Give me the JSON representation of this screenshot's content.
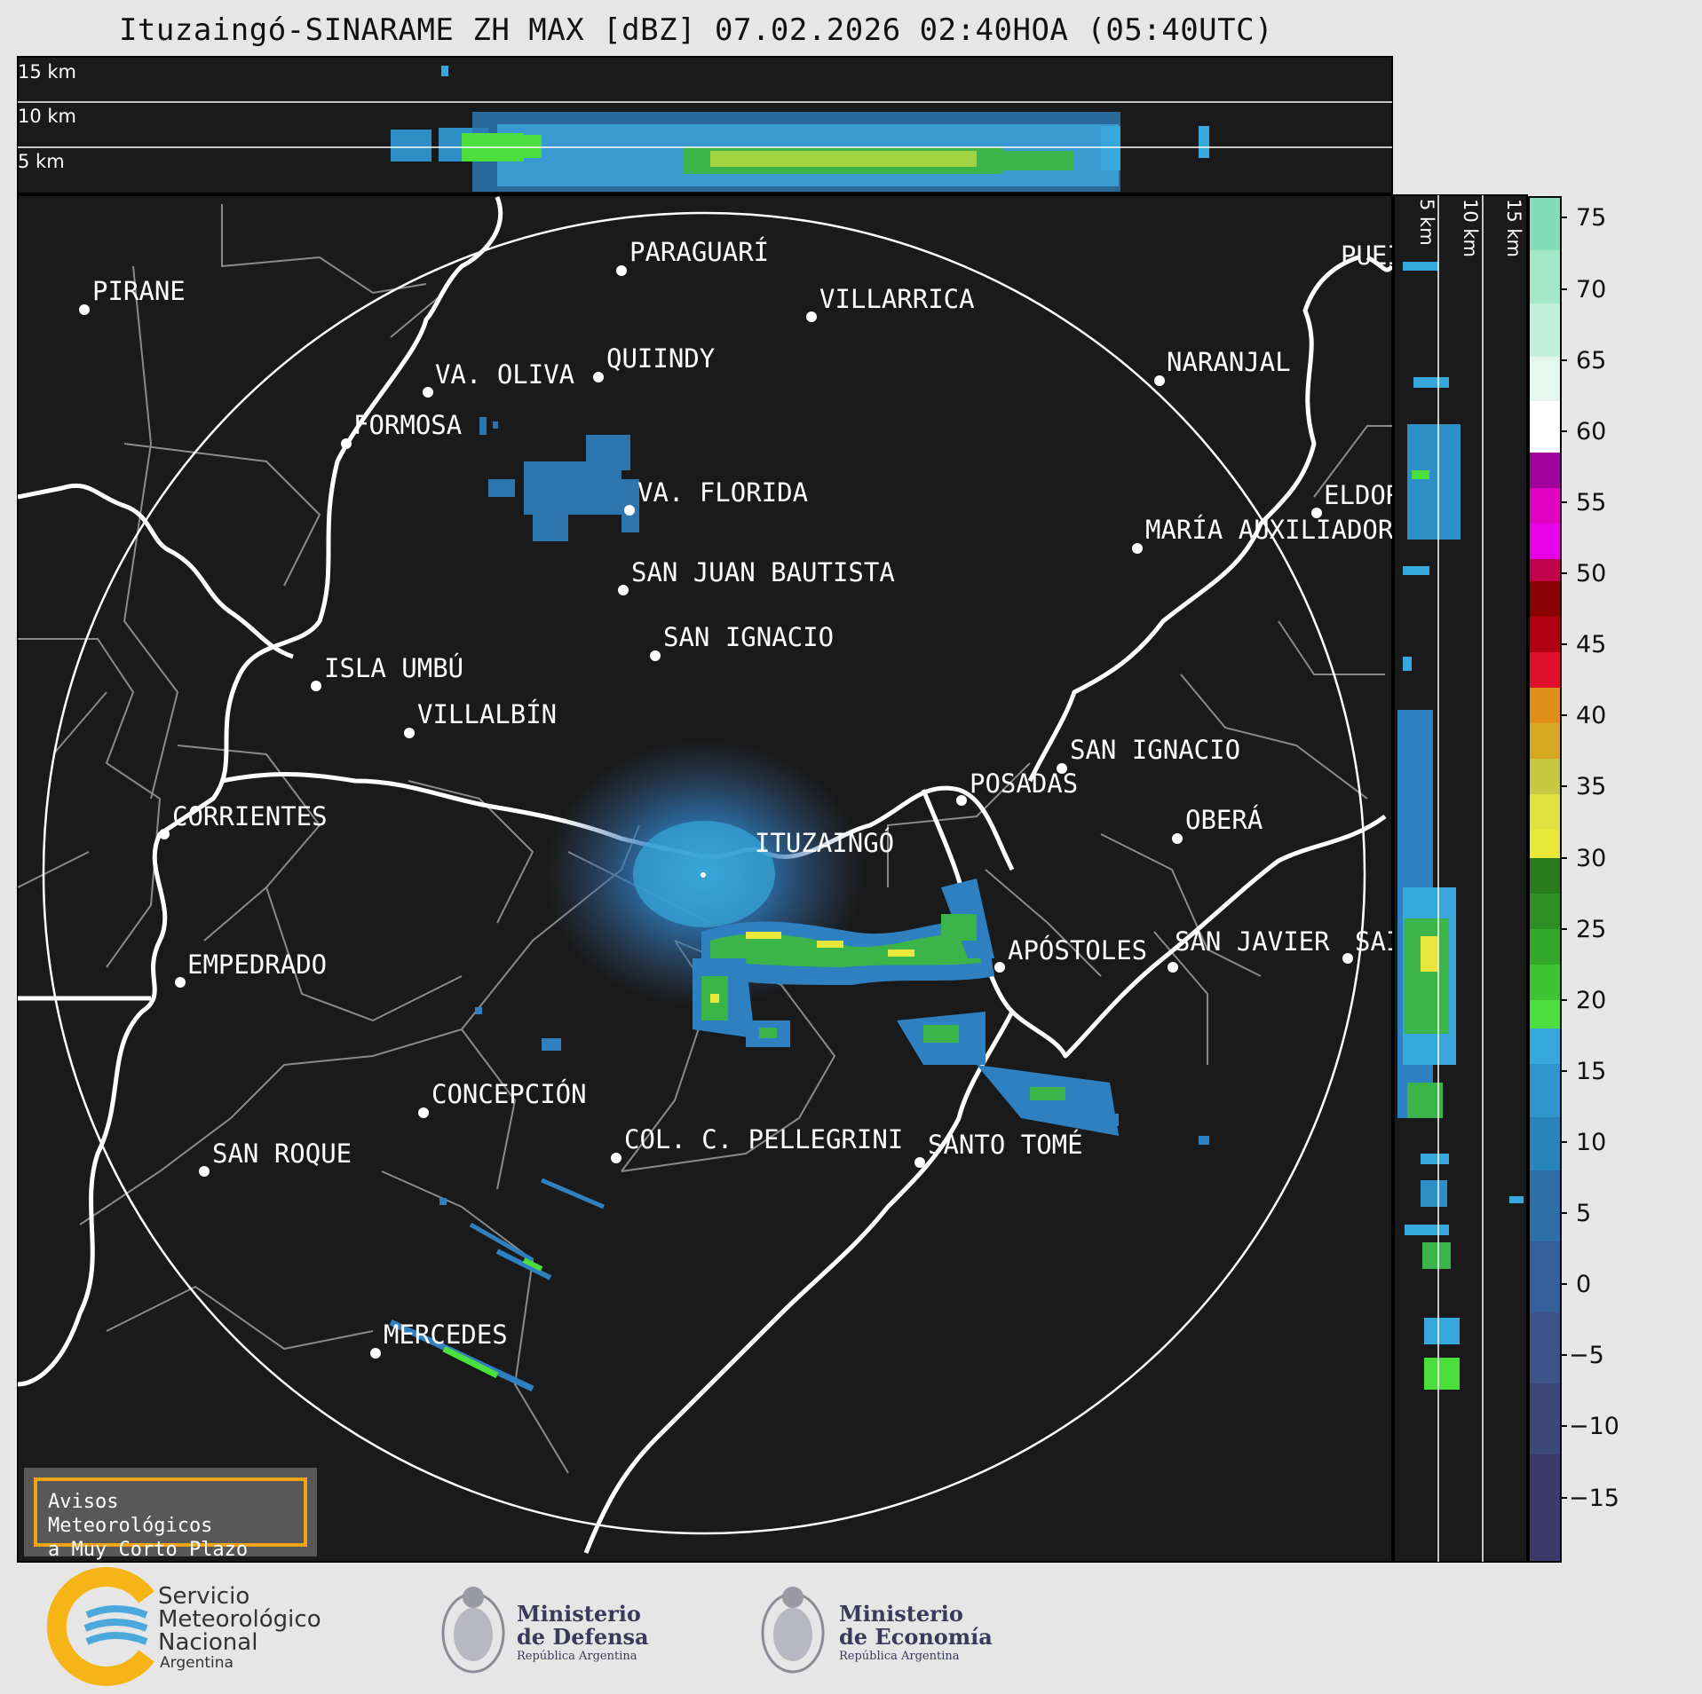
{
  "title": "Ituzaingó-SINARAME ZH MAX [dBZ] 07.02.2026 02:40HOA (05:40UTC)",
  "top_panel": {
    "height_labels": [
      "15 km",
      "10 km",
      "5 km"
    ]
  },
  "side_panel": {
    "height_labels": [
      "5 km",
      "10 km",
      "15 km"
    ]
  },
  "map": {
    "radar_site": "ITUZAINGÓ",
    "cities": [
      {
        "name": "PIRANE"
      },
      {
        "name": "PARAGUARÍ"
      },
      {
        "name": "VILLARRICA"
      },
      {
        "name": "VA. OLIVA"
      },
      {
        "name": "QUIINDY"
      },
      {
        "name": "NARANJAL"
      },
      {
        "name": "FORMOSA"
      },
      {
        "name": "VA. FLORIDA"
      },
      {
        "name": "ELDOR"
      },
      {
        "name": "MARÍA AUXILIADOR"
      },
      {
        "name": "SAN JUAN BAUTISTA"
      },
      {
        "name": "SAN IGNACIO"
      },
      {
        "name": "ISLA UMBÚ"
      },
      {
        "name": "VILLALBÍN"
      },
      {
        "name": "SAN IGNACIO"
      },
      {
        "name": "POSADAS"
      },
      {
        "name": "CORRIENTES"
      },
      {
        "name": "OBERÁ"
      },
      {
        "name": "APÓSTOLES"
      },
      {
        "name": "SAN JAVIER"
      },
      {
        "name": "SAI"
      },
      {
        "name": "EMPEDRADO"
      },
      {
        "name": "CONCEPCIÓN"
      },
      {
        "name": "COL. C. PELLEGRINI"
      },
      {
        "name": "SANTO TOMÉ"
      },
      {
        "name": "SAN ROQUE"
      },
      {
        "name": "MERCEDES"
      },
      {
        "name": "PUEI"
      }
    ]
  },
  "colorbar": {
    "units": "dBZ",
    "ticks": [
      "75",
      "70",
      "65",
      "60",
      "55",
      "50",
      "45",
      "40",
      "35",
      "30",
      "25",
      "20",
      "15",
      "10",
      "5",
      "0",
      "−5",
      "−10",
      "−15"
    ],
    "colors": {
      "high_teal": "#7fd6b0",
      "white": "#ffffff",
      "purple": "#a0009c",
      "magenta": "#e800e8",
      "dark_red": "#8b0000",
      "red": "#e0102a",
      "orange": "#e0901a",
      "yellow": "#e8e83a",
      "green_dark": "#2a7a1e",
      "green_light": "#4cde3c",
      "blue_light": "#36a8dc",
      "blue": "#2a7fb8",
      "blue_gray": "#3d5a8a",
      "indigo": "#3c3a6a"
    }
  },
  "warning": {
    "line1": "Avisos Meteorológicos",
    "line2": "a Muy Corto Plazo"
  },
  "logos": {
    "smn": {
      "line1": "Servicio",
      "line2": "Meteorológico",
      "line3": "Nacional",
      "line4": "Argentina"
    },
    "defensa": {
      "line1": "Ministerio",
      "line2": "de Defensa",
      "line3": "República Argentina"
    },
    "economia": {
      "line1": "Ministerio",
      "line2": "de Economía",
      "line3": "República Argentina"
    }
  }
}
